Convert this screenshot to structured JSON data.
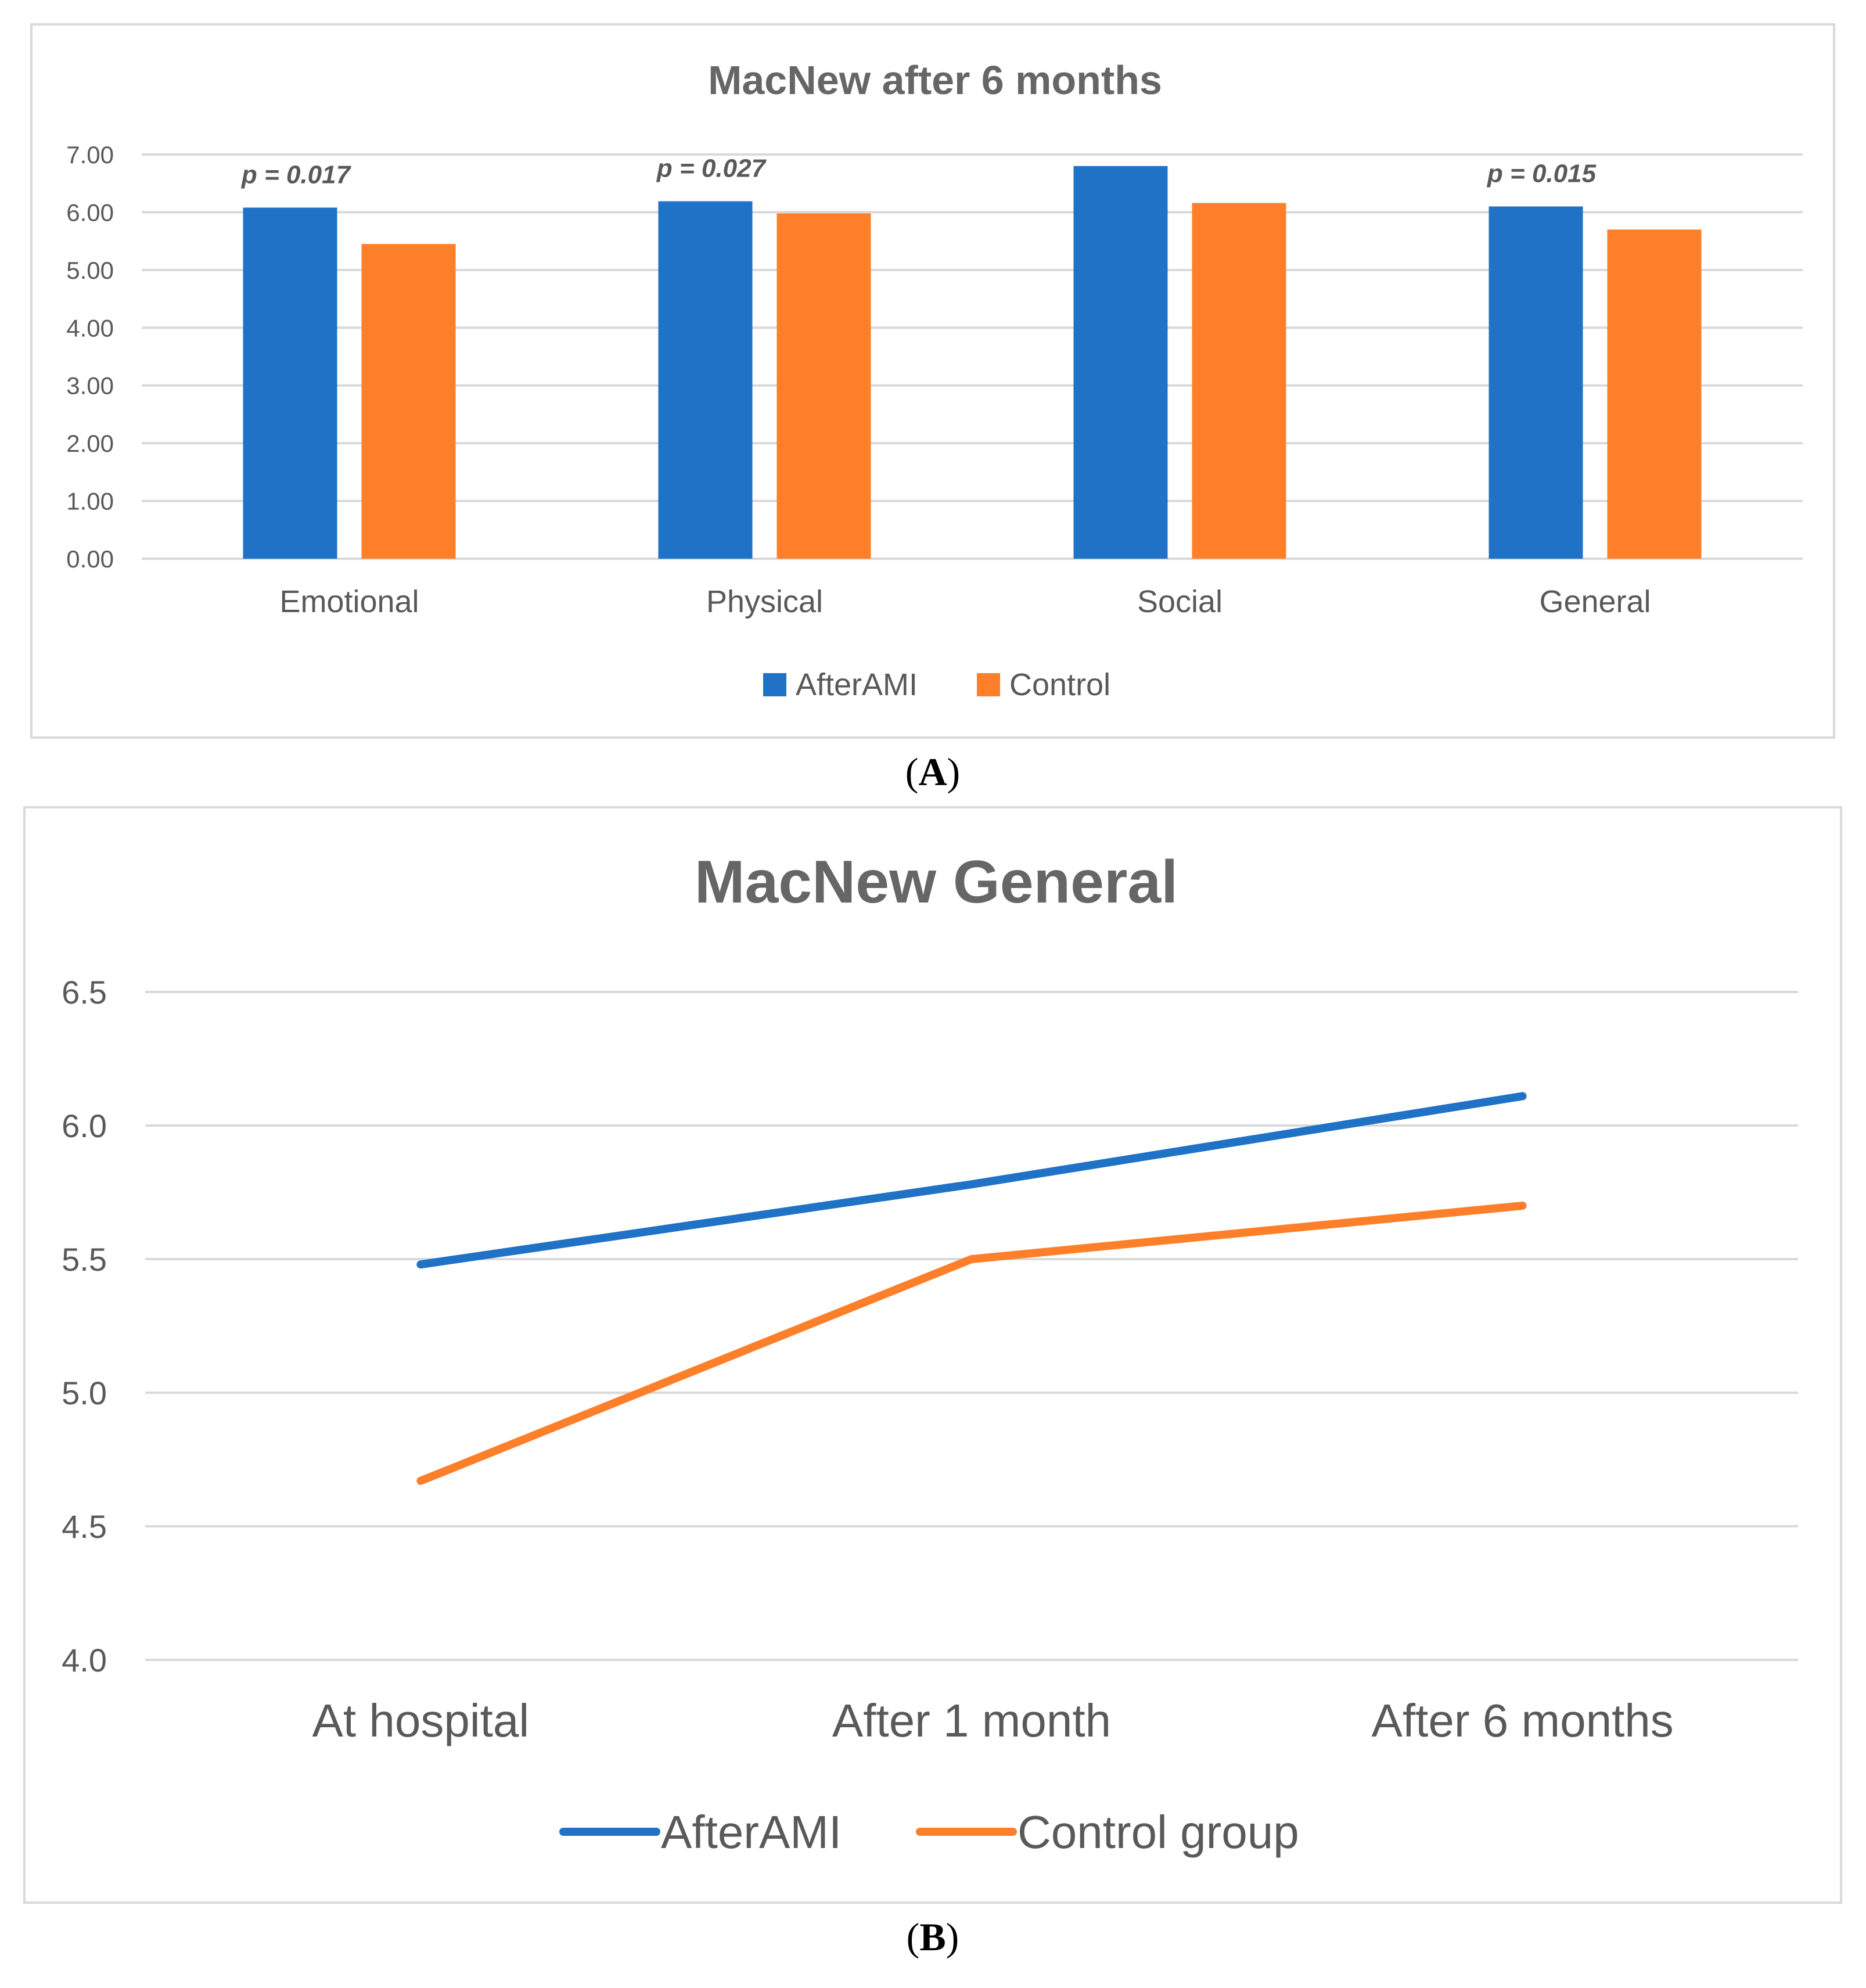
{
  "chart_data": [
    {
      "type": "bar",
      "panel_label": "A",
      "title": "MacNew after 6 months",
      "categories": [
        "Emotional",
        "Physical",
        "Social",
        "General"
      ],
      "series": [
        {
          "name": "AfterAMI",
          "values": [
            6.08,
            6.19,
            6.8,
            6.1
          ],
          "color": "#1f72c6"
        },
        {
          "name": "Control",
          "values": [
            5.45,
            5.98,
            6.16,
            5.7
          ],
          "color": "#fd7f2a"
        }
      ],
      "annotations": [
        "p = 0.017",
        "p = 0.027",
        "",
        "p = 0.015"
      ],
      "yticks": [
        "0.00",
        "1.00",
        "2.00",
        "3.00",
        "4.00",
        "5.00",
        "6.00",
        "7.00"
      ],
      "ylim": [
        0,
        7
      ],
      "grid": true,
      "legend": "bottom"
    },
    {
      "type": "line",
      "panel_label": "B",
      "title": "MacNew General",
      "categories": [
        "At hospital",
        "After 1 month",
        "After 6 months"
      ],
      "series": [
        {
          "name": "AfterAMI",
          "values": [
            5.48,
            5.78,
            6.11
          ],
          "color": "#1f72c6"
        },
        {
          "name": "Control group",
          "values": [
            4.67,
            5.5,
            5.7
          ],
          "color": "#fd7f2a"
        }
      ],
      "yticks": [
        "4.0",
        "4.5",
        "5.0",
        "5.5",
        "6.0",
        "6.5"
      ],
      "ylim": [
        4.0,
        6.5
      ],
      "grid": true,
      "legend": "bottom"
    }
  ]
}
